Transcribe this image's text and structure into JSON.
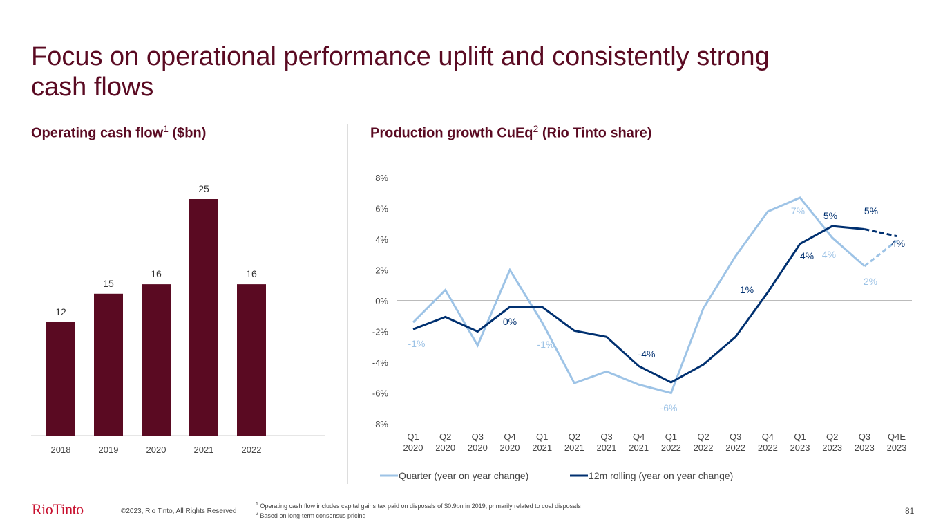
{
  "title": "Focus on operational performance uplift and consistently strong cash flows",
  "left_subtitle": {
    "text": "Operating cash flow",
    "sup": "1",
    "unit": " ($bn)"
  },
  "right_subtitle": {
    "text": "Production growth CuEq",
    "sup": "2",
    "unit": " (Rio Tinto share)"
  },
  "chart_data": [
    {
      "type": "bar",
      "categories": [
        "2018",
        "2019",
        "2020",
        "2021",
        "2022"
      ],
      "values": [
        12,
        15,
        16,
        25,
        16
      ],
      "data_labels": [
        "12",
        "15",
        "16",
        "25",
        "16"
      ],
      "color": "#5a0a22",
      "ylim": [
        0,
        28
      ]
    },
    {
      "type": "line",
      "categories": [
        [
          "Q1",
          "2020"
        ],
        [
          "Q2",
          "2020"
        ],
        [
          "Q3",
          "2020"
        ],
        [
          "Q4",
          "2020"
        ],
        [
          "Q1",
          "2021"
        ],
        [
          "Q2",
          "2021"
        ],
        [
          "Q3",
          "2021"
        ],
        [
          "Q4",
          "2021"
        ],
        [
          "Q1",
          "2022"
        ],
        [
          "Q2",
          "2022"
        ],
        [
          "Q3",
          "2022"
        ],
        [
          "Q4",
          "2022"
        ],
        [
          "Q1",
          "2023"
        ],
        [
          "Q2",
          "2023"
        ],
        [
          "Q3",
          "2023"
        ],
        [
          "Q4E",
          "2023"
        ]
      ],
      "ylim": [
        -8,
        8
      ],
      "yticks": [
        "-8%",
        "-6%",
        "-4%",
        "-2%",
        "0%",
        "2%",
        "4%",
        "6%",
        "8%"
      ],
      "ytick_values": [
        -8,
        -6,
        -4,
        -2,
        0,
        2,
        4,
        6,
        8
      ],
      "legend_position": "bottom",
      "series": [
        {
          "name": "Quarter (year on year change)",
          "color": "#9dc3e6",
          "values": [
            -1.4,
            0.7,
            -2.9,
            2.0,
            -1.4,
            -5.35,
            -4.6,
            -5.45,
            -6.0,
            -0.5,
            2.9,
            5.8,
            6.7,
            4.1,
            2.25,
            3.9
          ],
          "dashed_from_index": 14,
          "labels": [
            {
              "i": 0,
              "text": "-1%"
            },
            {
              "i": 4,
              "text": "-1%"
            },
            {
              "i": 8,
              "text": "-6%"
            },
            {
              "i": 12,
              "text": "7%"
            },
            {
              "i": 13,
              "text": "4%"
            },
            {
              "i": 14,
              "text": "2%"
            }
          ]
        },
        {
          "name": "12m rolling (year on year change)",
          "color": "#003070",
          "values": [
            -1.85,
            -1.05,
            -2.0,
            -0.4,
            -0.4,
            -1.95,
            -2.35,
            -4.25,
            -5.3,
            -4.15,
            -2.35,
            0.55,
            3.7,
            4.85,
            4.65,
            4.2
          ],
          "dashed_from_index": 14,
          "labels": [
            {
              "i": 3,
              "text": "0%"
            },
            {
              "i": 7,
              "text": "-4%"
            },
            {
              "i": 11,
              "text": "1%"
            },
            {
              "i": 12,
              "text": "4%"
            },
            {
              "i": 13,
              "text": "5%"
            },
            {
              "i": 14,
              "text": "5%"
            },
            {
              "i": 15,
              "text": "4%"
            }
          ]
        }
      ]
    }
  ],
  "footer": {
    "logo": "RioTinto",
    "copyright": "©2023, Rio Tinto, All Rights Reserved",
    "footnote1": "Operating cash flow includes capital gains tax paid on disposals of $0.9bn in 2019, primarily related to coal disposals",
    "footnote2": "Based on long-term consensus pricing",
    "page": "81"
  }
}
